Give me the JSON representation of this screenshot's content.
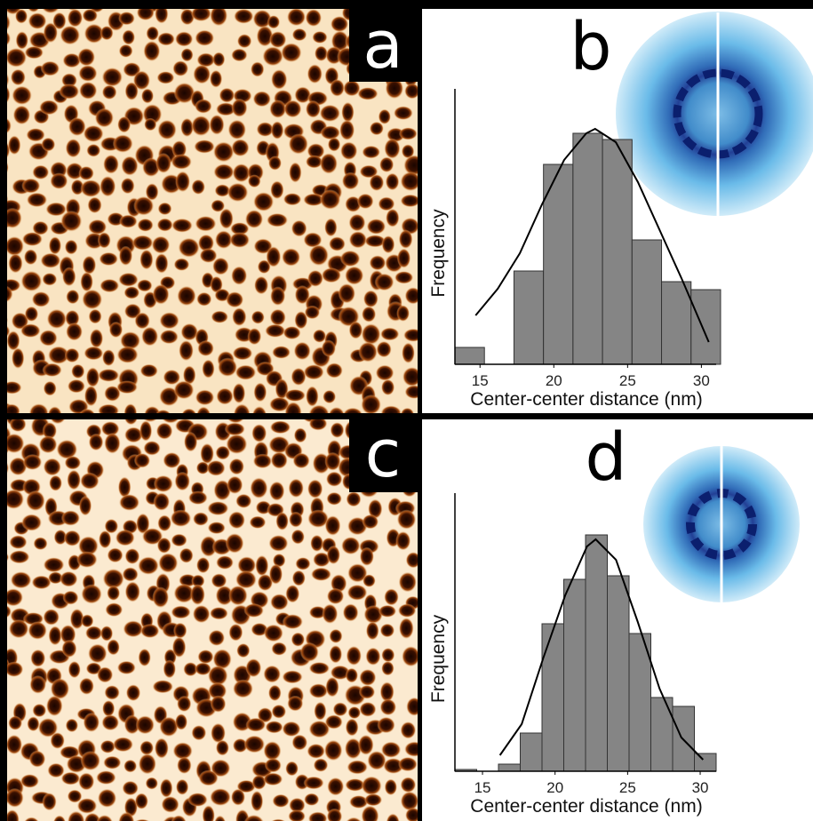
{
  "images": [
    {
      "label": "a"
    },
    {
      "label": "c"
    }
  ],
  "chart_data": [
    {
      "type": "histogram",
      "label": "b",
      "x_label": "Center-center distance (nm)",
      "y_label": "Frequency",
      "bins": [
        13.3,
        15.3,
        17.3,
        19.3,
        21.3,
        23.3,
        25.3,
        27.3,
        29.3,
        31.3
      ],
      "values": [
        19,
        0,
        105,
        225,
        260,
        253,
        140,
        93,
        84
      ],
      "color": "#858585",
      "fit": {
        "x": [
          14.7,
          16.2,
          17.7,
          19.2,
          20.7,
          22.2,
          22.8,
          24.2,
          25.7,
          27.2,
          28.7,
          30.5
        ],
        "values": [
          55,
          85,
          125,
          180,
          230,
          260,
          265,
          250,
          205,
          150,
          95,
          25
        ]
      },
      "xlim": [
        13.3,
        31
      ],
      "ylim": [
        0,
        310
      ],
      "xticks": [
        15,
        20,
        25,
        30
      ]
    },
    {
      "type": "histogram",
      "label": "d",
      "x_label": "Center-center distance (nm)",
      "y_label": "Frequency",
      "bins": [
        13.1,
        14.6,
        16.1,
        17.6,
        19.1,
        20.6,
        22.1,
        23.6,
        25.1,
        26.6,
        28.1,
        29.6,
        31.1
      ],
      "values": [
        2,
        0,
        8,
        43,
        166,
        216,
        266,
        220,
        155,
        83,
        73,
        20
      ],
      "color": "#858585",
      "fit": {
        "x": [
          16.2,
          17.7,
          19.2,
          20.7,
          22.2,
          22.8,
          24.2,
          25.7,
          27.2,
          28.7,
          30.2
        ],
        "values": [
          18,
          53,
          128,
          198,
          253,
          261,
          238,
          168,
          93,
          38,
          13
        ]
      },
      "xlim": [
        13.1,
        31.1
      ],
      "ylim": [
        0,
        313
      ],
      "xticks": [
        15,
        20,
        25,
        30
      ]
    }
  ]
}
